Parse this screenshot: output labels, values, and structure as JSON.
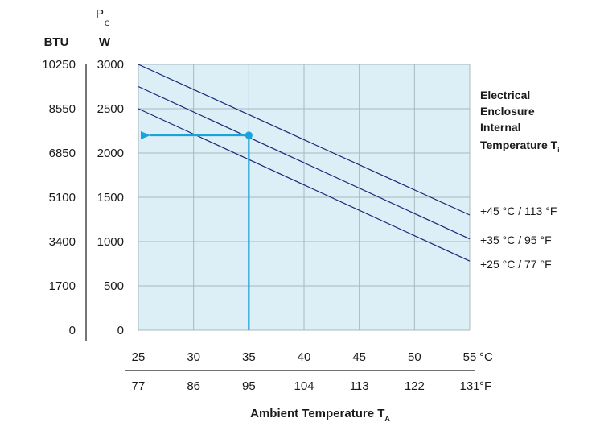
{
  "chart_data": {
    "type": "line",
    "title": "",
    "y_axis": {
      "symbol": "P",
      "symbol_subscript": "C",
      "unit_labels": [
        "BTU",
        "W"
      ],
      "ticks_w": [
        "0",
        "500",
        "1000",
        "1500",
        "2000",
        "2500",
        "3000"
      ],
      "ticks_btu": [
        "0",
        "1700",
        "3400",
        "5100",
        "6850",
        "8550",
        "10250"
      ],
      "range_w": [
        0,
        3000
      ]
    },
    "x_axis": {
      "label": "Ambient Temperature T",
      "label_subscript": "A",
      "ticks_c": [
        "25",
        "30",
        "35",
        "40",
        "45",
        "50",
        "55"
      ],
      "ticks_f": [
        "77",
        "86",
        "95",
        "104",
        "113",
        "122",
        "131"
      ],
      "unit_c": "°C",
      "unit_f": "°F",
      "range_c": [
        25,
        55
      ]
    },
    "legend": {
      "title_lines": [
        "Electrical",
        "Enclosure",
        "Internal",
        "Temperature T"
      ],
      "title_subscript": "i"
    },
    "series": [
      {
        "name": "+45 °C / 113 °F",
        "x": [
          25,
          55
        ],
        "y": [
          3000,
          1300
        ]
      },
      {
        "name": "+35 °C / 95 °F",
        "x": [
          25,
          55
        ],
        "y": [
          2750,
          1030
        ]
      },
      {
        "name": "+25 °C / 77 °F",
        "x": [
          25,
          55
        ],
        "y": [
          2500,
          780
        ]
      }
    ],
    "highlight": {
      "x": 35,
      "y": 2200
    },
    "grid": true,
    "colors": {
      "plot_bg": "#dceef6",
      "grid": "#a9b8c0",
      "lines": "#1a2a78",
      "highlight": "#1aa3d9",
      "axis": "#1a1a1a"
    }
  }
}
